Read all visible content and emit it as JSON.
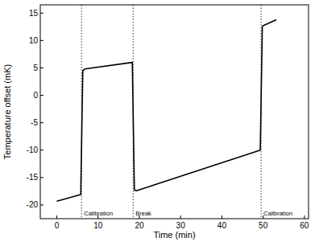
{
  "chart_data": {
    "type": "line",
    "x_label": "Time (min)",
    "y_label": "Temperature offset (mK)",
    "x": [
      0,
      5.8,
      6.3,
      6.8,
      18.3,
      18.8,
      19.3,
      49.3,
      49.8,
      50.3,
      53.2
    ],
    "series": [
      {
        "name": "Temperature offset",
        "color": "#000000",
        "values": [
          -19.3,
          -18.1,
          4.5,
          4.8,
          6.0,
          -17.3,
          -17.4,
          -10.0,
          12.6,
          12.8,
          13.8
        ]
      }
    ],
    "xlim": [
      -4,
      61
    ],
    "xticks": [
      0,
      10,
      20,
      30,
      40,
      50,
      60
    ],
    "ylim": [
      -22.5,
      16.5
    ],
    "yticks": [
      -20,
      -15,
      -10,
      -5,
      0,
      5,
      10,
      15
    ],
    "annotations": [
      {
        "x": 6.0,
        "label": "Calibration"
      },
      {
        "x": 18.5,
        "label": "Break"
      },
      {
        "x": 49.5,
        "label": "Calibration"
      }
    ],
    "grid": false
  }
}
